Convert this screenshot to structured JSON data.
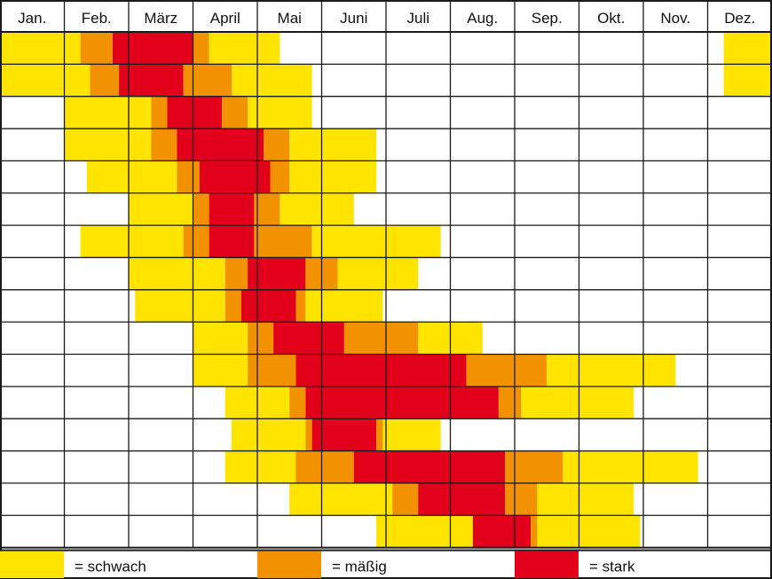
{
  "chart_data": {
    "type": "heatmap",
    "months": [
      "Jan.",
      "Feb.",
      "März",
      "April",
      "Mai",
      "Juni",
      "Juli",
      "Aug.",
      "Sep.",
      "Okt.",
      "Nov.",
      "Dez."
    ],
    "colors": {
      "schwach": "#ffe400",
      "mäßig": "#f39200",
      "stark": "#e3001b"
    },
    "rows": [
      [
        [
          0.0,
          1.25,
          "schwach"
        ],
        [
          1.25,
          1.75,
          "mäßig"
        ],
        [
          1.75,
          3.0,
          "stark"
        ],
        [
          3.0,
          3.25,
          "mäßig"
        ],
        [
          3.25,
          4.35,
          "schwach"
        ],
        [
          11.25,
          12.0,
          "schwach"
        ]
      ],
      [
        [
          0.0,
          1.4,
          "mäßig"
        ],
        [
          0.0,
          1.4,
          "schwach"
        ],
        [
          1.4,
          1.85,
          "mäßig"
        ],
        [
          1.85,
          2.85,
          "stark"
        ],
        [
          2.85,
          3.6,
          "mäßig"
        ],
        [
          3.6,
          4.85,
          "schwach"
        ],
        [
          11.25,
          12.0,
          "schwach"
        ]
      ],
      [
        [
          1.0,
          2.35,
          "schwach"
        ],
        [
          2.35,
          2.6,
          "mäßig"
        ],
        [
          2.6,
          3.45,
          "stark"
        ],
        [
          3.45,
          3.85,
          "mäßig"
        ],
        [
          3.85,
          4.85,
          "schwach"
        ]
      ],
      [
        [
          1.0,
          2.35,
          "schwach"
        ],
        [
          2.35,
          2.75,
          "mäßig"
        ],
        [
          2.75,
          4.1,
          "stark"
        ],
        [
          4.1,
          4.5,
          "mäßig"
        ],
        [
          4.5,
          5.85,
          "schwach"
        ]
      ],
      [
        [
          1.35,
          2.75,
          "schwach"
        ],
        [
          2.75,
          3.1,
          "mäßig"
        ],
        [
          3.1,
          4.2,
          "stark"
        ],
        [
          4.2,
          4.5,
          "mäßig"
        ],
        [
          4.5,
          5.85,
          "schwach"
        ]
      ],
      [
        [
          2.0,
          3.0,
          "schwach"
        ],
        [
          3.0,
          3.25,
          "mäßig"
        ],
        [
          3.25,
          3.95,
          "stark"
        ],
        [
          3.95,
          4.35,
          "mäßig"
        ],
        [
          4.35,
          5.5,
          "schwach"
        ]
      ],
      [
        [
          1.25,
          2.85,
          "schwach"
        ],
        [
          2.85,
          3.25,
          "mäßig"
        ],
        [
          3.25,
          3.95,
          "stark"
        ],
        [
          3.95,
          4.85,
          "mäßig"
        ],
        [
          4.85,
          6.85,
          "schwach"
        ]
      ],
      [
        [
          2.0,
          3.5,
          "schwach"
        ],
        [
          3.5,
          3.85,
          "mäßig"
        ],
        [
          3.85,
          4.75,
          "stark"
        ],
        [
          4.75,
          5.25,
          "mäßig"
        ],
        [
          5.25,
          6.5,
          "schwach"
        ]
      ],
      [
        [
          2.1,
          3.5,
          "schwach"
        ],
        [
          3.5,
          3.75,
          "mäßig"
        ],
        [
          3.75,
          4.6,
          "stark"
        ],
        [
          4.6,
          4.75,
          "mäßig"
        ],
        [
          4.75,
          5.95,
          "schwach"
        ]
      ],
      [
        [
          3.0,
          3.85,
          "schwach"
        ],
        [
          3.85,
          4.25,
          "mäßig"
        ],
        [
          4.25,
          5.35,
          "stark"
        ],
        [
          5.35,
          6.5,
          "mäßig"
        ],
        [
          6.5,
          7.5,
          "schwach"
        ]
      ],
      [
        [
          3.0,
          3.85,
          "schwach"
        ],
        [
          3.85,
          4.6,
          "mäßig"
        ],
        [
          4.6,
          7.25,
          "stark"
        ],
        [
          7.25,
          8.5,
          "mäßig"
        ],
        [
          8.5,
          10.5,
          "schwach"
        ]
      ],
      [
        [
          3.5,
          4.5,
          "schwach"
        ],
        [
          4.5,
          4.75,
          "mäßig"
        ],
        [
          4.75,
          7.75,
          "stark"
        ],
        [
          7.75,
          8.1,
          "mäßig"
        ],
        [
          8.1,
          9.85,
          "schwach"
        ]
      ],
      [
        [
          3.6,
          4.75,
          "schwach"
        ],
        [
          4.75,
          4.85,
          "mäßig"
        ],
        [
          4.85,
          5.85,
          "stark"
        ],
        [
          5.85,
          5.95,
          "mäßig"
        ],
        [
          5.95,
          6.85,
          "schwach"
        ]
      ],
      [
        [
          3.5,
          4.6,
          "schwach"
        ],
        [
          4.6,
          5.5,
          "mäßig"
        ],
        [
          5.5,
          7.85,
          "stark"
        ],
        [
          7.85,
          8.75,
          "mäßig"
        ],
        [
          8.75,
          10.85,
          "schwach"
        ]
      ],
      [
        [
          4.5,
          6.1,
          "schwach"
        ],
        [
          6.1,
          6.5,
          "mäßig"
        ],
        [
          6.5,
          7.85,
          "stark"
        ],
        [
          7.85,
          8.35,
          "mäßig"
        ],
        [
          8.35,
          9.85,
          "schwach"
        ]
      ],
      [
        [
          5.85,
          7.35,
          "schwach"
        ],
        [
          7.35,
          8.25,
          "stark"
        ],
        [
          8.25,
          8.35,
          "mäßig"
        ],
        [
          8.35,
          9.95,
          "schwach"
        ]
      ]
    ],
    "legend": [
      {
        "key": "schwach",
        "label": "= schwach"
      },
      {
        "key": "mäßig",
        "label": "= mäßig"
      },
      {
        "key": "stark",
        "label": "= stark"
      }
    ],
    "legend_position": "bottom",
    "grid": true
  }
}
